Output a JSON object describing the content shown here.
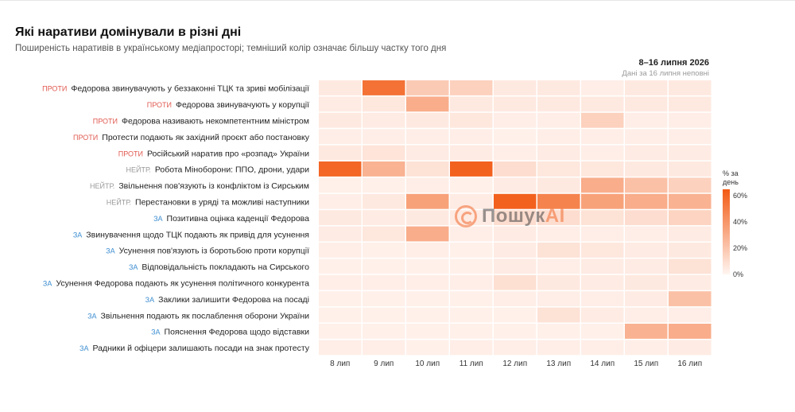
{
  "title": "Які наративи домінували в різні дні",
  "subtitle": "Поширеність наративів в українському медіапросторі; темніший колір означає більшу частку того дня",
  "date_range": "8–16 липня 2026",
  "note": "Дані за 16 липня неповні",
  "watermark": {
    "brand": "Пошук",
    "brand_suffix": "AI"
  },
  "colors": {
    "low": "#fff5f1",
    "high": "#f25a14",
    "against": "#e05a50",
    "neutral": "#9a9a9a",
    "for": "#3f8fd2"
  },
  "chart_data": {
    "type": "heatmap",
    "x": [
      "8 лип",
      "9 лип",
      "10 лип",
      "11 лип",
      "12 лип",
      "13 лип",
      "14 лип",
      "15 лип",
      "16 лип"
    ],
    "legend": {
      "title_line1": "% за",
      "title_line2": "день",
      "ticks": [
        "60%",
        "40%",
        "20%",
        "0%"
      ],
      "range": [
        0,
        65
      ]
    },
    "rows": [
      {
        "tag": "ПРОТИ",
        "stance": "against",
        "label": "Федорова звинувачують у беззаконні ТЦК та зриві мобілізації",
        "values": [
          5,
          55,
          18,
          15,
          5,
          5,
          3,
          5,
          5
        ]
      },
      {
        "tag": "ПРОТИ",
        "stance": "against",
        "label": "Федорова звинувачують у корупції",
        "values": [
          4,
          6,
          30,
          5,
          5,
          5,
          5,
          5,
          5
        ]
      },
      {
        "tag": "ПРОТИ",
        "stance": "against",
        "label": "Федорова називають некомпетентним міністром",
        "values": [
          5,
          4,
          5,
          6,
          3,
          3,
          15,
          3,
          3
        ]
      },
      {
        "tag": "ПРОТИ",
        "stance": "against",
        "label": "Протести подають як західний проєкт або постановку",
        "values": [
          3,
          3,
          3,
          3,
          2,
          3,
          3,
          3,
          3
        ]
      },
      {
        "tag": "ПРОТИ",
        "stance": "against",
        "label": "Російський наратив про «розпад» України",
        "values": [
          5,
          7,
          4,
          4,
          3,
          4,
          3,
          4,
          4
        ]
      },
      {
        "tag": "НЕЙТР.",
        "stance": "neutral",
        "label": "Робота Міноборони: ППО, дрони, удари",
        "values": [
          60,
          28,
          8,
          62,
          10,
          6,
          6,
          5,
          5
        ]
      },
      {
        "tag": "НЕЙТР.",
        "stance": "neutral",
        "label": "Звільнення пов'язують із конфліктом із Сирським",
        "values": [
          2,
          2,
          3,
          2,
          4,
          5,
          30,
          22,
          15
        ]
      },
      {
        "tag": "НЕЙТР.",
        "stance": "neutral",
        "label": "Перестановки в уряді та можливі наступники",
        "values": [
          3,
          5,
          35,
          4,
          62,
          48,
          35,
          30,
          28
        ]
      },
      {
        "tag": "ЗА",
        "stance": "for",
        "label": "Позитивна оцінка каденції Федорова",
        "values": [
          5,
          4,
          5,
          4,
          10,
          10,
          8,
          10,
          14
        ]
      },
      {
        "tag": "ЗА",
        "stance": "for",
        "label": "Звинувачення щодо ТЦК подають як привід для усунення",
        "values": [
          4,
          6,
          30,
          3,
          4,
          3,
          3,
          3,
          4
        ]
      },
      {
        "tag": "ЗА",
        "stance": "for",
        "label": "Усунення пов'язують із боротьбою проти корупції",
        "values": [
          3,
          2,
          3,
          2,
          4,
          8,
          6,
          4,
          5
        ]
      },
      {
        "tag": "ЗА",
        "stance": "for",
        "label": "Відповідальність покладають на Сирського",
        "values": [
          2,
          2,
          2,
          2,
          4,
          3,
          4,
          4,
          8
        ]
      },
      {
        "tag": "ЗА",
        "stance": "for",
        "label": "Усунення Федорова подають як усунення політичного конкурента",
        "values": [
          3,
          3,
          3,
          3,
          9,
          5,
          4,
          5,
          4
        ]
      },
      {
        "tag": "ЗА",
        "stance": "for",
        "label": "Заклики залишити Федорова на посаді",
        "values": [
          2,
          2,
          2,
          2,
          3,
          3,
          3,
          4,
          22
        ]
      },
      {
        "tag": "ЗА",
        "stance": "for",
        "label": "Звільнення подають як послаблення оборони України",
        "values": [
          2,
          2,
          2,
          2,
          2,
          8,
          4,
          3,
          3
        ]
      },
      {
        "tag": "ЗА",
        "stance": "for",
        "label": "Пояснення Федорова щодо відставки",
        "values": [
          2,
          2,
          2,
          2,
          2,
          2,
          2,
          28,
          30
        ]
      },
      {
        "tag": "ЗА",
        "stance": "for",
        "label": "Радники й офіцери залишають посади на знак протесту",
        "values": [
          3,
          3,
          2,
          3,
          3,
          3,
          3,
          3,
          4
        ]
      }
    ]
  }
}
